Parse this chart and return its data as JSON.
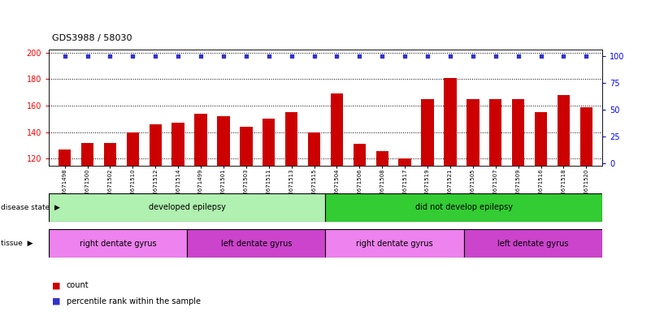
{
  "title": "GDS3988 / 58030",
  "samples": [
    "GSM671498",
    "GSM671500",
    "GSM671502",
    "GSM671510",
    "GSM671512",
    "GSM671514",
    "GSM671499",
    "GSM671501",
    "GSM671503",
    "GSM671511",
    "GSM671513",
    "GSM671515",
    "GSM671504",
    "GSM671506",
    "GSM671508",
    "GSM671517",
    "GSM671519",
    "GSM671521",
    "GSM671505",
    "GSM671507",
    "GSM671509",
    "GSM671516",
    "GSM671518",
    "GSM671520"
  ],
  "counts": [
    127,
    132,
    132,
    140,
    146,
    147,
    154,
    152,
    144,
    150,
    155,
    140,
    169,
    131,
    126,
    120,
    165,
    181,
    165,
    165,
    165,
    155,
    168,
    159
  ],
  "percentiles": [
    100,
    100,
    100,
    100,
    100,
    100,
    100,
    100,
    100,
    100,
    100,
    100,
    100,
    100,
    100,
    100,
    100,
    100,
    100,
    100,
    100,
    100,
    100,
    100
  ],
  "bar_color": "#cc0000",
  "dot_color": "#3333cc",
  "ylim_left": [
    115,
    202
  ],
  "ylim_right": [
    -2,
    106
  ],
  "yticks_left": [
    120,
    140,
    160,
    180,
    200
  ],
  "yticks_right": [
    0,
    25,
    50,
    75,
    100
  ],
  "disease_state_groups": [
    {
      "label": "developed epilepsy",
      "start": 0,
      "end": 12,
      "color": "#b0f0b0"
    },
    {
      "label": "did not develop epilepsy",
      "start": 12,
      "end": 24,
      "color": "#33cc33"
    }
  ],
  "tissue_groups": [
    {
      "label": "right dentate gyrus",
      "start": 0,
      "end": 6,
      "color": "#ee82ee"
    },
    {
      "label": "left dentate gyrus",
      "start": 6,
      "end": 12,
      "color": "#cc44cc"
    },
    {
      "label": "right dentate gyrus",
      "start": 12,
      "end": 18,
      "color": "#ee82ee"
    },
    {
      "label": "left dentate gyrus",
      "start": 18,
      "end": 24,
      "color": "#cc44cc"
    }
  ],
  "disease_label": "disease state",
  "tissue_label": "tissue",
  "legend_count_label": "count",
  "legend_percentile_label": "percentile rank within the sample",
  "bar_width": 0.55,
  "background_color": "#ffffff",
  "plot_bg_color": "#ffffff"
}
